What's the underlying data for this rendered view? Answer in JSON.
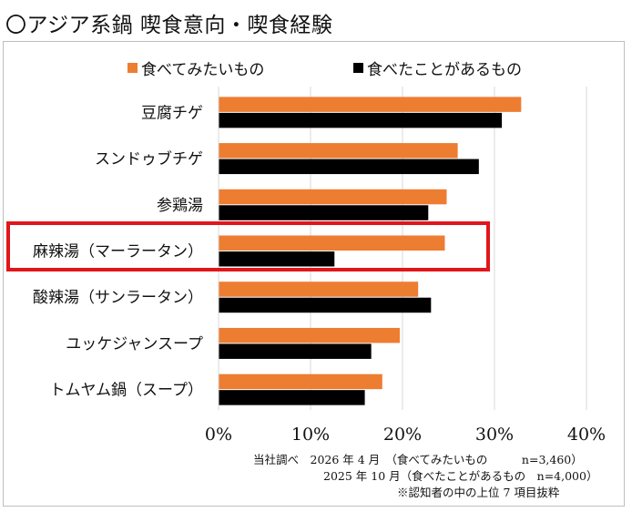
{
  "title": "〇アジア系鍋 喫食意向・喫食経験",
  "colors": {
    "want": "#ed7d31",
    "eaten": "#000000",
    "grid": "#d9d9d9",
    "highlight": "#e0161b"
  },
  "chart_data": {
    "type": "bar",
    "orientation": "horizontal",
    "categories": [
      "豆腐チゲ",
      "スンドゥブチゲ",
      "参鶏湯",
      "麻辣湯（マーラータン）",
      "酸辣湯（サンラータン）",
      "ユッケジャンスープ",
      "トムヤム鍋（スープ）"
    ],
    "series": [
      {
        "name": "食べてみたいもの",
        "values": [
          32.9,
          26.0,
          24.8,
          24.6,
          21.7,
          19.7,
          17.8
        ]
      },
      {
        "name": "食べたことがあるもの",
        "values": [
          30.8,
          28.3,
          22.8,
          12.6,
          23.1,
          16.6,
          15.9
        ]
      }
    ],
    "xlim": [
      0,
      40
    ],
    "xticks": [
      "0%",
      "10%",
      "20%",
      "30%",
      "40%"
    ],
    "grid": true,
    "legend": "top",
    "highlighted_category": "麻辣湯（マーラータン）"
  },
  "footnotes": [
    "当社調べ　2026 年 4 月　（食べてみたいもの　　　n=3,460）",
    "2025 年 10 月（食べたことがあるもの　n=4,000）",
    "※認知者の中の上位 7 項目抜粋"
  ]
}
